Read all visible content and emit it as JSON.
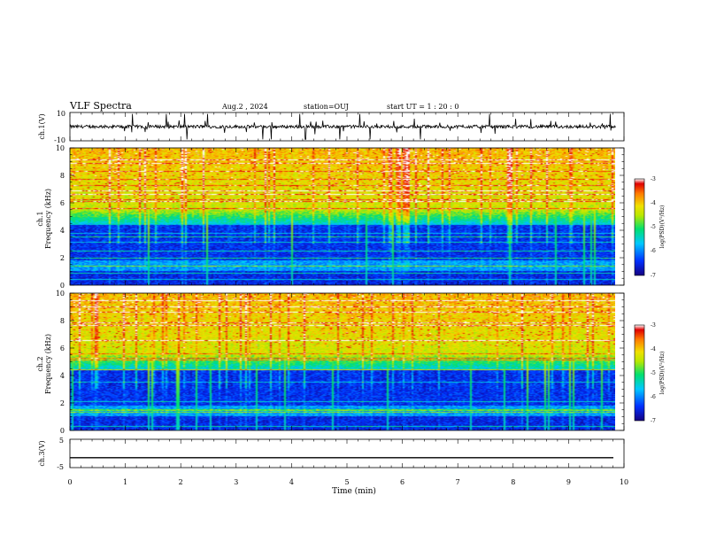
{
  "header": {
    "title": "VLF Spectra",
    "date": "Aug.2 , 2024",
    "station": "station=OUJ",
    "start": "start UT = 1 : 20 : 0"
  },
  "chart_data": [
    {
      "type": "line",
      "id": "waveform-ch1",
      "ylabel": "ch.1(V)",
      "ylim": [
        -10,
        10
      ],
      "yticks": [
        "10",
        "-10"
      ],
      "baseline": 0,
      "xlim": [
        0,
        10
      ]
    },
    {
      "type": "heatmap",
      "id": "spectrogram-ch1",
      "ylabel_top": "ch.1",
      "ylabel": "Frequency (kHz)",
      "ylim": [
        0,
        10
      ],
      "yticks": [
        "0",
        "2",
        "4",
        "6",
        "8",
        "10"
      ],
      "xlim": [
        0,
        9.85
      ],
      "colorbar": {
        "label": "log(PSD)(V²/Hz)",
        "range": [
          -7,
          -3
        ],
        "ticks": [
          "-3",
          "-4",
          "-5",
          "-6",
          "-7"
        ]
      }
    },
    {
      "type": "heatmap",
      "id": "spectrogram-ch2",
      "ylabel_top": "ch.2",
      "ylabel": "Frequency (kHz)",
      "ylim": [
        0,
        10
      ],
      "yticks": [
        "0",
        "2",
        "4",
        "6",
        "8",
        "10"
      ],
      "xlim": [
        0,
        9.85
      ],
      "colorbar": {
        "label": "log(PSD)(V²/Hz)",
        "range": [
          -7,
          -3
        ],
        "ticks": [
          "-3",
          "-4",
          "-5",
          "-6",
          "-7"
        ]
      }
    },
    {
      "type": "line",
      "id": "waveform-ch3",
      "ylabel": "ch.3(V)",
      "ylim": [
        -5,
        5
      ],
      "yticks": [
        "5",
        "-5"
      ],
      "baseline": -1.5,
      "xlim": [
        0,
        10
      ]
    }
  ],
  "xaxis": {
    "label": "Time (min)",
    "ticks": [
      "0",
      "1",
      "2",
      "3",
      "4",
      "5",
      "6",
      "7",
      "8",
      "9",
      "10"
    ]
  },
  "colors": {
    "colormap": [
      "#1a00a8",
      "#0040ff",
      "#00c8ff",
      "#00e070",
      "#b8e800",
      "#f0e000",
      "#ff8000",
      "#e00000"
    ]
  }
}
